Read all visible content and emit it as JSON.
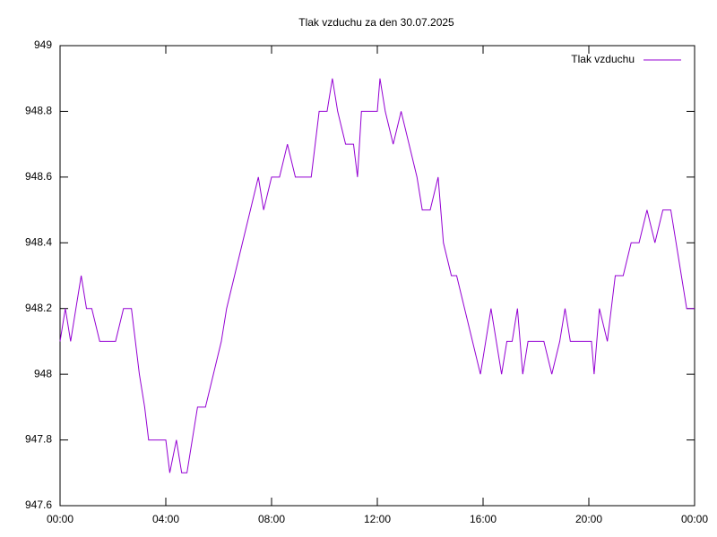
{
  "chart_data": {
    "type": "line",
    "title": "Tlak vzduchu za den 30.07.2025",
    "x": [
      0,
      0.2,
      0.4,
      0.6,
      0.8,
      1.0,
      1.2,
      1.5,
      1.8,
      2.1,
      2.4,
      2.7,
      2.85,
      3.0,
      3.2,
      3.35,
      3.6,
      4.0,
      4.15,
      4.4,
      4.6,
      4.8,
      5.0,
      5.2,
      5.5,
      5.8,
      6.1,
      6.3,
      6.6,
      6.9,
      7.2,
      7.5,
      7.7,
      8.0,
      8.3,
      8.6,
      8.9,
      9.2,
      9.5,
      9.8,
      10.1,
      10.3,
      10.5,
      10.8,
      11.1,
      11.25,
      11.4,
      11.7,
      12.0,
      12.1,
      12.3,
      12.6,
      12.9,
      13.2,
      13.5,
      13.7,
      14.0,
      14.3,
      14.5,
      14.8,
      15.0,
      15.3,
      15.6,
      15.9,
      16.1,
      16.3,
      16.5,
      16.7,
      16.9,
      17.1,
      17.3,
      17.5,
      17.7,
      18.0,
      18.3,
      18.6,
      18.9,
      19.1,
      19.3,
      19.5,
      19.8,
      20.1,
      20.2,
      20.4,
      20.7,
      21.0,
      21.3,
      21.6,
      21.9,
      22.2,
      22.5,
      22.8,
      23.1,
      23.3,
      23.5,
      23.7,
      24.0
    ],
    "series": [
      {
        "name": "Tlak vzduchu",
        "color": "#9400d3",
        "values": [
          948.1,
          948.2,
          948.1,
          948.2,
          948.3,
          948.2,
          948.2,
          948.1,
          948.1,
          948.1,
          948.2,
          948.2,
          948.1,
          948.0,
          947.9,
          947.8,
          947.8,
          947.8,
          947.7,
          947.8,
          947.7,
          947.7,
          947.8,
          947.9,
          947.9,
          948.0,
          948.1,
          948.2,
          948.3,
          948.4,
          948.5,
          948.6,
          948.5,
          948.6,
          948.6,
          948.7,
          948.6,
          948.6,
          948.6,
          948.8,
          948.8,
          948.9,
          948.8,
          948.7,
          948.7,
          948.6,
          948.8,
          948.8,
          948.8,
          948.9,
          948.8,
          948.7,
          948.8,
          948.7,
          948.6,
          948.5,
          948.5,
          948.6,
          948.4,
          948.3,
          948.3,
          948.2,
          948.1,
          948.0,
          948.1,
          948.2,
          948.1,
          948.0,
          948.1,
          948.1,
          948.2,
          948.0,
          948.1,
          948.1,
          948.1,
          948.0,
          948.1,
          948.2,
          948.1,
          948.1,
          948.1,
          948.1,
          948.0,
          948.2,
          948.1,
          948.3,
          948.3,
          948.4,
          948.4,
          948.5,
          948.4,
          948.5,
          948.5,
          948.4,
          948.3,
          948.2,
          948.2
        ]
      }
    ],
    "xlim": [
      0,
      24
    ],
    "xticks": [
      {
        "value": 0,
        "label": "00:00"
      },
      {
        "value": 4,
        "label": "04:00"
      },
      {
        "value": 8,
        "label": "08:00"
      },
      {
        "value": 12,
        "label": "12:00"
      },
      {
        "value": 16,
        "label": "16:00"
      },
      {
        "value": 20,
        "label": "20:00"
      },
      {
        "value": 24,
        "label": "00:00"
      }
    ],
    "ylim": [
      947.6,
      949
    ],
    "yticks": [
      947.6,
      947.8,
      948,
      948.2,
      948.4,
      948.6,
      948.8,
      949
    ],
    "grid": false,
    "legend": "top-right"
  }
}
